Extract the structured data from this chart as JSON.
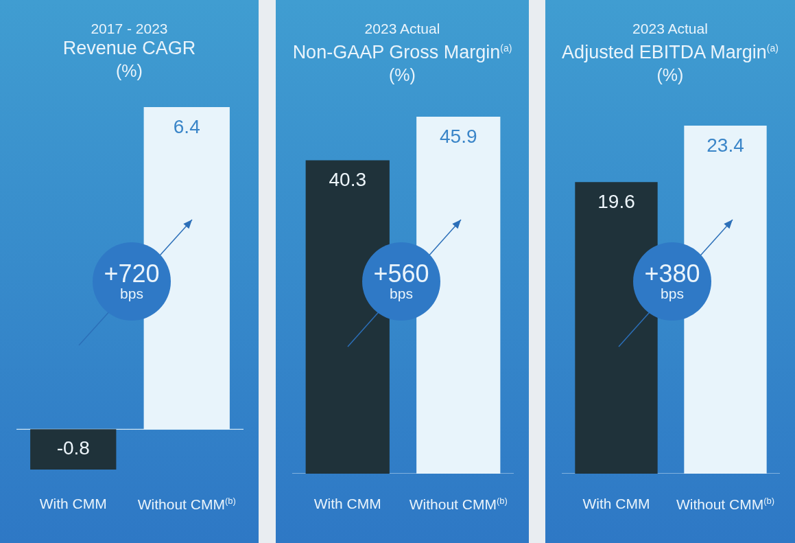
{
  "chart_data": [
    {
      "type": "bar",
      "subtitle": "2017 - 2023",
      "title": "Revenue CAGR",
      "ylabel": "(%)",
      "categories": [
        "With CMM",
        "Without CMM$^{(b)}$"
      ],
      "values": [
        -0.8,
        6.4
      ],
      "colors": [
        "#1f323a",
        "#e8f4fb"
      ],
      "data_labels": true,
      "annotations": [
        "+720 bps"
      ]
    },
    {
      "type": "bar",
      "subtitle": "2023 Actual",
      "title": "Non-GAAP Gross Margin$^{(a)}$",
      "ylabel": "(%)",
      "categories": [
        "With CMM",
        "Without CMM$^{(b)}$"
      ],
      "values": [
        40.3,
        45.9
      ],
      "colors": [
        "#1f323a",
        "#e8f4fb"
      ],
      "data_labels": true,
      "annotations": [
        "+560 bps"
      ]
    },
    {
      "type": "bar",
      "subtitle": "2023 Actual",
      "title": "Adjusted EBITDA Margin$^{(a)}$",
      "ylabel": "(%)",
      "categories": [
        "With CMM",
        "Without CMM$^{(b)}$"
      ],
      "values": [
        19.6,
        23.4
      ],
      "colors": [
        "#1f323a",
        "#e8f4fb"
      ],
      "data_labels": true,
      "annotations": [
        "+380 bps"
      ]
    }
  ]
}
